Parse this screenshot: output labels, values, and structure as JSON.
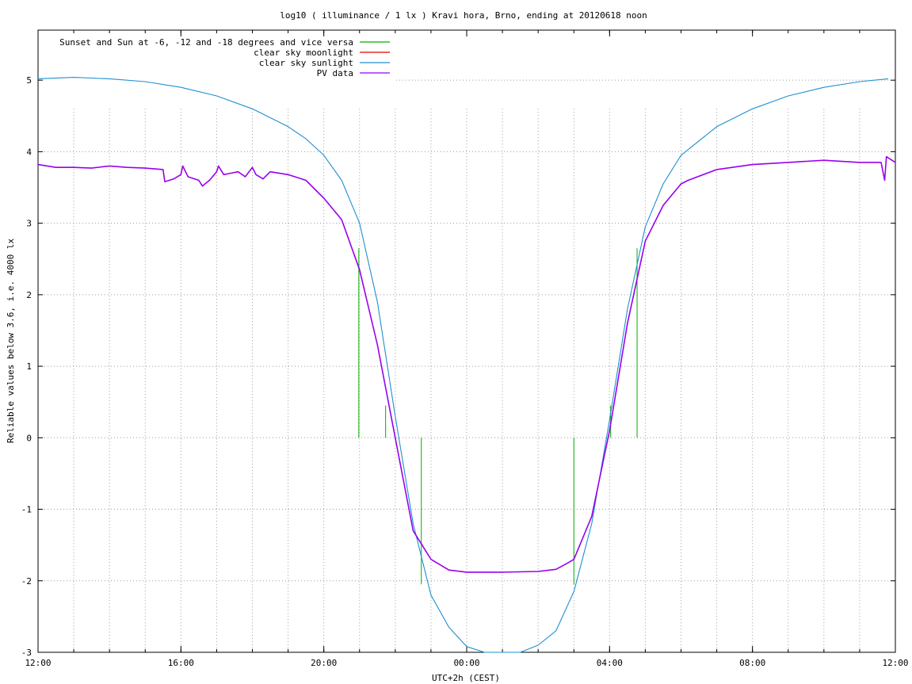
{
  "chart_data": {
    "type": "line",
    "title": "log10 ( illuminance / 1 lx ) Kravi hora, Brno, ending at 20120618 noon",
    "xlabel": "UTC+2h (CEST)",
    "ylabel": "Reliable values below 3.6, i.e. 4000 lx",
    "xlim": [
      12,
      36
    ],
    "ylim": [
      -3,
      5.7
    ],
    "grid": true,
    "legend_position": "top-left",
    "x_ticks": [
      {
        "x": 12,
        "label": "12:00"
      },
      {
        "x": 16,
        "label": "16:00"
      },
      {
        "x": 20,
        "label": "20:00"
      },
      {
        "x": 24,
        "label": "00:00"
      },
      {
        "x": 28,
        "label": "04:00"
      },
      {
        "x": 32,
        "label": "08:00"
      },
      {
        "x": 36,
        "label": "12:00"
      }
    ],
    "y_ticks": [
      {
        "y": 5,
        "label": "5"
      },
      {
        "y": 4,
        "label": "4"
      },
      {
        "y": 3,
        "label": "3"
      },
      {
        "y": 2,
        "label": "2"
      },
      {
        "y": 1,
        "label": "1"
      },
      {
        "y": 0,
        "label": "0"
      },
      {
        "y": -1,
        "label": "-1"
      },
      {
        "y": -2,
        "label": "-2"
      },
      {
        "y": -3,
        "label": "-3"
      }
    ],
    "series": [
      {
        "name": "Sunset and Sun at -6, -12 and -18 degrees and vice versa",
        "color": "#00b000",
        "style": "impulses",
        "points": [
          {
            "x": 20.98,
            "from": 0,
            "to": 2.65
          },
          {
            "x": 21.73,
            "from": 0,
            "to": 0.45
          },
          {
            "x": 22.73,
            "from": 0,
            "to": -2.05
          },
          {
            "x": 27.0,
            "from": 0,
            "to": -2.05
          },
          {
            "x": 28.03,
            "from": 0,
            "to": 0.45
          },
          {
            "x": 28.77,
            "from": 0,
            "to": 2.65
          }
        ]
      },
      {
        "name": "clear sky moonlight",
        "color": "#e00000",
        "points": []
      },
      {
        "name": "clear sky sunlight",
        "color": "#1f8fd1",
        "points": [
          [
            12,
            5.02
          ],
          [
            13,
            5.04
          ],
          [
            14,
            5.02
          ],
          [
            15,
            4.98
          ],
          [
            16,
            4.9
          ],
          [
            17,
            4.78
          ],
          [
            18,
            4.6
          ],
          [
            19,
            4.35
          ],
          [
            19.5,
            4.18
          ],
          [
            20,
            3.95
          ],
          [
            20.5,
            3.6
          ],
          [
            21,
            3.0
          ],
          [
            21.5,
            1.9
          ],
          [
            22,
            0.3
          ],
          [
            22.5,
            -1.2
          ],
          [
            23,
            -2.2
          ],
          [
            23.5,
            -2.65
          ],
          [
            24,
            -2.92
          ],
          [
            24.5,
            -3.0
          ],
          [
            25,
            -3.05
          ],
          [
            25.5,
            -3.0
          ],
          [
            26,
            -2.9
          ],
          [
            26.5,
            -2.7
          ],
          [
            27,
            -2.15
          ],
          [
            27.5,
            -1.2
          ],
          [
            28,
            0.25
          ],
          [
            28.5,
            1.8
          ],
          [
            29,
            2.95
          ],
          [
            29.5,
            3.55
          ],
          [
            30,
            3.95
          ],
          [
            31,
            4.35
          ],
          [
            32,
            4.6
          ],
          [
            33,
            4.78
          ],
          [
            34,
            4.9
          ],
          [
            35,
            4.98
          ],
          [
            35.8,
            5.02
          ]
        ]
      },
      {
        "name": "PV data",
        "color": "#9900ee",
        "points": [
          [
            12,
            3.82
          ],
          [
            12.5,
            3.78
          ],
          [
            13,
            3.78
          ],
          [
            13.5,
            3.77
          ],
          [
            14,
            3.8
          ],
          [
            14.5,
            3.78
          ],
          [
            15,
            3.77
          ],
          [
            15.5,
            3.75
          ],
          [
            15.55,
            3.58
          ],
          [
            15.8,
            3.62
          ],
          [
            16,
            3.68
          ],
          [
            16.05,
            3.8
          ],
          [
            16.2,
            3.65
          ],
          [
            16.5,
            3.6
          ],
          [
            16.6,
            3.52
          ],
          [
            16.8,
            3.6
          ],
          [
            17,
            3.72
          ],
          [
            17.05,
            3.8
          ],
          [
            17.2,
            3.68
          ],
          [
            17.4,
            3.7
          ],
          [
            17.6,
            3.72
          ],
          [
            17.8,
            3.65
          ],
          [
            18,
            3.78
          ],
          [
            18.1,
            3.68
          ],
          [
            18.3,
            3.62
          ],
          [
            18.5,
            3.72
          ],
          [
            19,
            3.68
          ],
          [
            19.5,
            3.6
          ],
          [
            20,
            3.35
          ],
          [
            20.5,
            3.05
          ],
          [
            21,
            2.35
          ],
          [
            21.5,
            1.3
          ],
          [
            22,
            0.0
          ],
          [
            22.5,
            -1.3
          ],
          [
            23,
            -1.7
          ],
          [
            23.5,
            -1.85
          ],
          [
            24,
            -1.88
          ],
          [
            25,
            -1.88
          ],
          [
            26,
            -1.87
          ],
          [
            26.5,
            -1.84
          ],
          [
            26.8,
            -1.76
          ],
          [
            27,
            -1.7
          ],
          [
            27.5,
            -1.1
          ],
          [
            28,
            0.1
          ],
          [
            28.5,
            1.6
          ],
          [
            29,
            2.75
          ],
          [
            29.5,
            3.25
          ],
          [
            30,
            3.55
          ],
          [
            30.2,
            3.6
          ],
          [
            31,
            3.75
          ],
          [
            32,
            3.82
          ],
          [
            33,
            3.85
          ],
          [
            34,
            3.88
          ],
          [
            35,
            3.85
          ],
          [
            35.6,
            3.85
          ],
          [
            35.7,
            3.6
          ],
          [
            35.75,
            3.93
          ],
          [
            36,
            3.85
          ]
        ]
      }
    ]
  }
}
